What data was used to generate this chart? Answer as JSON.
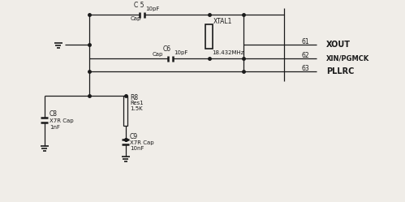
{
  "bg_color": "#f0ede8",
  "line_color": "#1a1a1a",
  "text_color": "#1a1a1a",
  "figsize": [
    4.99,
    2.49
  ],
  "dpi": 100,
  "components": {
    "C5_label": "C 5",
    "C5_val": "10pF",
    "C5_type": "Cap",
    "C6_label": "C6",
    "C6_val": "10pF",
    "C6_type": "Cap",
    "XTAL1_label": "XTAL1",
    "XTAL1_freq": "18.432MHz",
    "C8_label": "C8",
    "C8_type": "X7R Cap",
    "C8_val": "1nF",
    "C9_label": "C9",
    "C9_type": "X7R Cap",
    "C9_val": "10nF",
    "R8_label": "R8",
    "R8_type": "Res1",
    "R8_val": "1.5K",
    "pin61": "61",
    "pin62": "62",
    "pin63": "63",
    "net61": "XOUT",
    "net62": "XIN/PGMCK",
    "net63": "PLLRC"
  }
}
